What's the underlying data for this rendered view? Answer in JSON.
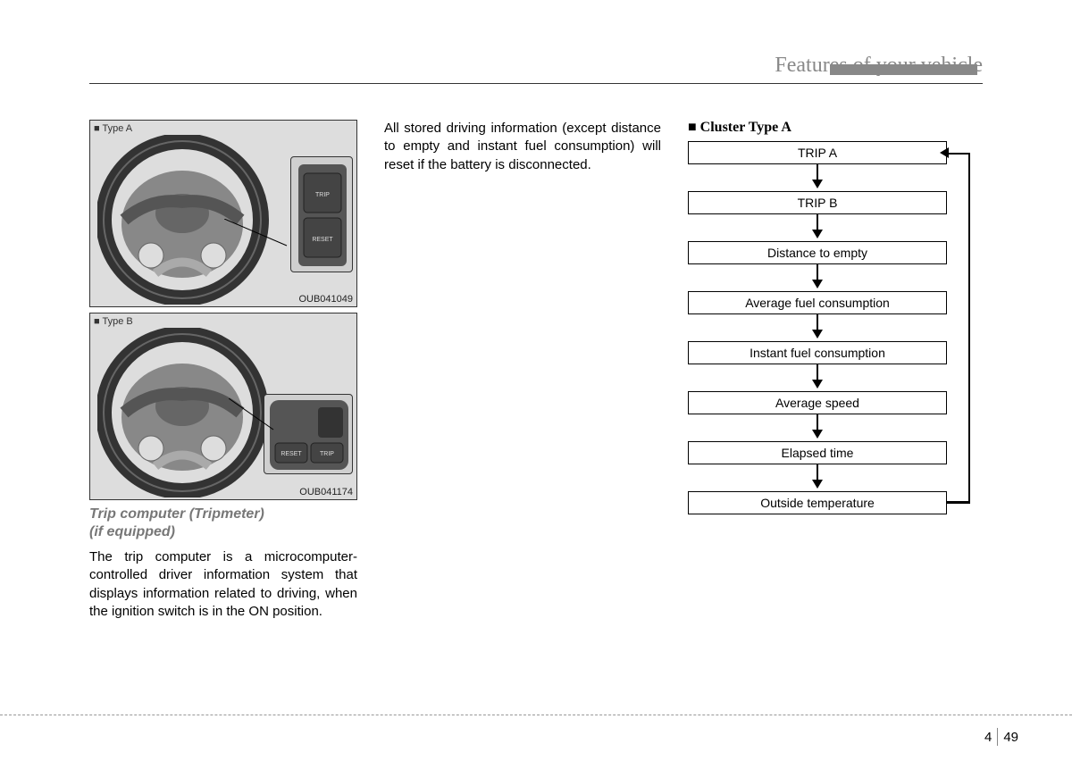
{
  "header": {
    "title": "Features of your vehicle",
    "title_color": "#888888",
    "rule_color": "#333333"
  },
  "figures": {
    "a": {
      "label": "■ Type A",
      "code": "OUB041049",
      "button1": "TRIP",
      "button2": "RESET"
    },
    "b": {
      "label": "■ Type B",
      "code": "OUB041174",
      "button1": "RESET",
      "button2": "TRIP"
    }
  },
  "section": {
    "title_line1": "Trip computer (Tripmeter)",
    "title_line2": "(if equipped)",
    "para1": "The trip computer is a microcomputer-controlled driver information system that displays information related to driving, when the ignition switch is in the ON position.",
    "para2": "All stored driving information (except distance to empty and instant fuel consumption) will reset if the battery is disconnected."
  },
  "flowchart": {
    "type": "flowchart",
    "title_prefix": "■",
    "title": "Cluster Type A",
    "box_border": "#000000",
    "box_bg": "#ffffff",
    "arrow_color": "#000000",
    "font_size": 14,
    "nodes": [
      {
        "id": "trip_a",
        "label": "TRIP A"
      },
      {
        "id": "trip_b",
        "label": "TRIP B"
      },
      {
        "id": "dte",
        "label": "Distance to empty"
      },
      {
        "id": "afc",
        "label": "Average fuel consumption"
      },
      {
        "id": "ifc",
        "label": "Instant fuel consumption"
      },
      {
        "id": "avs",
        "label": "Average speed"
      },
      {
        "id": "elt",
        "label": "Elapsed time"
      },
      {
        "id": "out",
        "label": "Outside temperature"
      }
    ],
    "edges": [
      {
        "from": "trip_a",
        "to": "trip_b"
      },
      {
        "from": "trip_b",
        "to": "dte"
      },
      {
        "from": "dte",
        "to": "afc"
      },
      {
        "from": "afc",
        "to": "ifc"
      },
      {
        "from": "ifc",
        "to": "avs"
      },
      {
        "from": "avs",
        "to": "elt"
      },
      {
        "from": "elt",
        "to": "out"
      },
      {
        "from": "out",
        "to": "trip_a",
        "return": true
      }
    ]
  },
  "page_number": {
    "chapter": "4",
    "page": "49"
  },
  "colors": {
    "page_bg": "#ffffff",
    "fig_bg": "#dddddd",
    "section_title": "#777777"
  }
}
